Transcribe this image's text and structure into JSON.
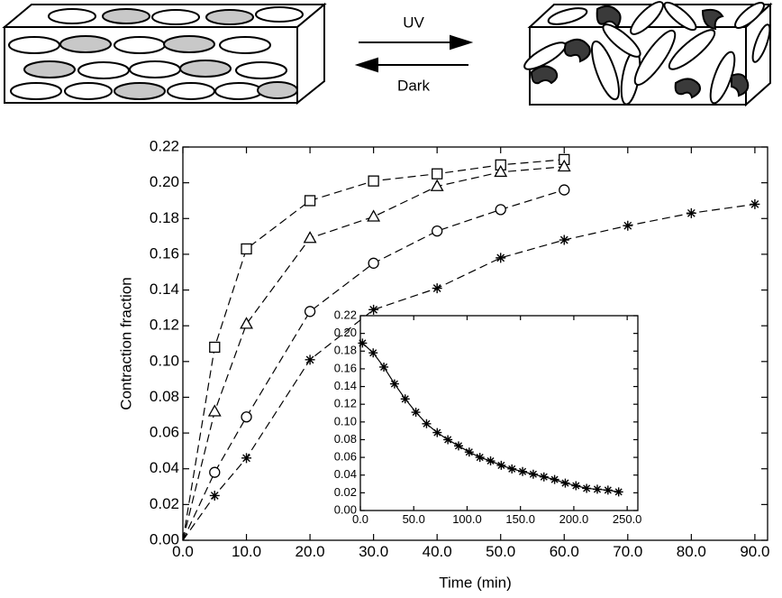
{
  "schematic": {
    "forward_label": "UV",
    "reverse_label": "Dark"
  },
  "chart_data": [
    {
      "type": "line",
      "xlabel": "Time (min)",
      "ylabel": "Contraction fraction",
      "line_style": "dashed",
      "color": "#000000",
      "xlim": [
        0,
        92
      ],
      "ylim": [
        0,
        0.22
      ],
      "xticks": [
        {
          "value": 0,
          "label": "0.0"
        },
        {
          "value": 10,
          "label": "10.0"
        },
        {
          "value": 20,
          "label": "20.0"
        },
        {
          "value": 30,
          "label": "30.0"
        },
        {
          "value": 40,
          "label": "40.0"
        },
        {
          "value": 50,
          "label": "50.0"
        },
        {
          "value": 60,
          "label": "60.0"
        },
        {
          "value": 70,
          "label": "70.0"
        },
        {
          "value": 80,
          "label": "80.0"
        },
        {
          "value": 90,
          "label": "90.0"
        }
      ],
      "yticks": [
        {
          "value": 0,
          "label": "0.00"
        },
        {
          "value": 0.02,
          "label": "0.02"
        },
        {
          "value": 0.04,
          "label": "0.04"
        },
        {
          "value": 0.06,
          "label": "0.06"
        },
        {
          "value": 0.08,
          "label": "0.08"
        },
        {
          "value": 0.1,
          "label": "0.10"
        },
        {
          "value": 0.12,
          "label": "0.12"
        },
        {
          "value": 0.14,
          "label": "0.14"
        },
        {
          "value": 0.16,
          "label": "0.16"
        },
        {
          "value": 0.18,
          "label": "0.18"
        },
        {
          "value": 0.2,
          "label": "0.20"
        },
        {
          "value": 0.22,
          "label": "0.22"
        }
      ],
      "series": [
        {
          "marker": "square",
          "x": [
            5,
            10,
            20,
            30,
            40,
            50,
            60
          ],
          "values": [
            0.108,
            0.163,
            0.19,
            0.201,
            0.205,
            0.21,
            0.213
          ]
        },
        {
          "marker": "triangle",
          "x": [
            5,
            10,
            20,
            30,
            40,
            50,
            60
          ],
          "values": [
            0.072,
            0.121,
            0.169,
            0.181,
            0.198,
            0.206,
            0.209
          ]
        },
        {
          "marker": "circle",
          "x": [
            5,
            10,
            20,
            30,
            40,
            50,
            60
          ],
          "values": [
            0.038,
            0.069,
            0.128,
            0.155,
            0.173,
            0.185,
            0.196
          ]
        },
        {
          "marker": "star",
          "x": [
            5,
            10,
            20,
            30,
            40,
            50,
            60,
            70,
            80,
            90
          ],
          "values": [
            0.025,
            0.046,
            0.101,
            0.129,
            0.141,
            0.158,
            0.168,
            0.176,
            0.183,
            0.188
          ]
        }
      ]
    },
    {
      "type": "line",
      "line_style": "solid",
      "color": "#000000",
      "xlim": [
        0,
        260
      ],
      "ylim": [
        0,
        0.22
      ],
      "xticks": [
        {
          "value": 0,
          "label": "0.0"
        },
        {
          "value": 50,
          "label": "50.0"
        },
        {
          "value": 100,
          "label": "100.0"
        },
        {
          "value": 150,
          "label": "150.0"
        },
        {
          "value": 200,
          "label": "200.0"
        },
        {
          "value": 250,
          "label": "250.0"
        }
      ],
      "yticks": [
        {
          "value": 0,
          "label": "0.00"
        },
        {
          "value": 0.02,
          "label": "0.02"
        },
        {
          "value": 0.04,
          "label": "0.04"
        },
        {
          "value": 0.06,
          "label": "0.06"
        },
        {
          "value": 0.08,
          "label": "0.08"
        },
        {
          "value": 0.1,
          "label": "0.10"
        },
        {
          "value": 0.12,
          "label": "0.12"
        },
        {
          "value": 0.14,
          "label": "0.14"
        },
        {
          "value": 0.16,
          "label": "0.16"
        },
        {
          "value": 0.18,
          "label": "0.18"
        },
        {
          "value": 0.2,
          "label": "0.20"
        },
        {
          "value": 0.22,
          "label": "0.22"
        }
      ],
      "series": [
        {
          "marker": "star",
          "x": [
            2,
            12,
            22,
            32,
            42,
            52,
            62,
            72,
            82,
            92,
            102,
            112,
            122,
            132,
            142,
            152,
            162,
            172,
            182,
            192,
            202,
            212,
            222,
            232,
            242
          ],
          "values": [
            0.189,
            0.178,
            0.162,
            0.143,
            0.126,
            0.111,
            0.098,
            0.088,
            0.08,
            0.073,
            0.066,
            0.06,
            0.056,
            0.051,
            0.047,
            0.044,
            0.041,
            0.038,
            0.035,
            0.031,
            0.028,
            0.025,
            0.024,
            0.023,
            0.021
          ]
        }
      ]
    }
  ]
}
